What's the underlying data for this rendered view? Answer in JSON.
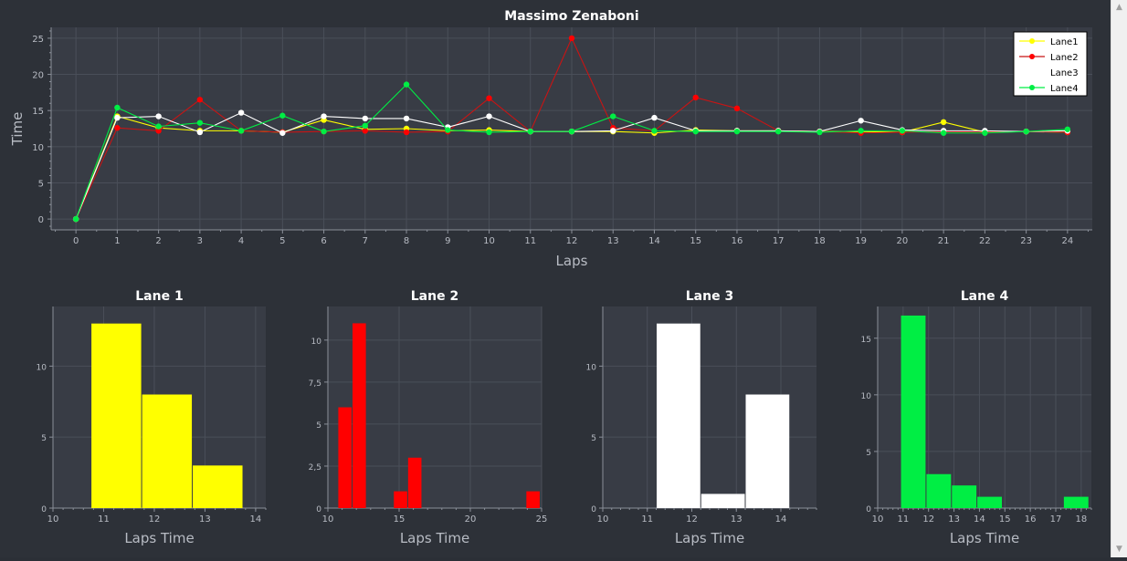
{
  "colors": {
    "background": "#2d3138",
    "plot_bg": "#383c45",
    "grid": "#4a4f59",
    "text": "#e6e6e6",
    "tick_text": "#b8bcc4",
    "lane1": "#ffff00",
    "lane2": "#ff0000",
    "lane3": "#ffffff",
    "lane4": "#00ee44",
    "lane2_line": "#c81414",
    "legend_bg": "#ffffff"
  },
  "chart_data": [
    {
      "type": "line",
      "title": "Massimo Zenaboni",
      "xlabel": "Laps",
      "ylabel": "Time",
      "xlim": [
        -0.6,
        24.6
      ],
      "ylim": [
        -1.5,
        26.5
      ],
      "x_ticks": [
        0,
        1,
        2,
        3,
        4,
        5,
        6,
        7,
        8,
        9,
        10,
        11,
        12,
        13,
        14,
        15,
        16,
        17,
        18,
        19,
        20,
        21,
        22,
        23,
        24
      ],
      "y_ticks": [
        0,
        5,
        10,
        15,
        20,
        25
      ],
      "grid": true,
      "legend_position": "top-right",
      "x": [
        0,
        1,
        2,
        3,
        4,
        5,
        6,
        7,
        8,
        9,
        10,
        11,
        12,
        13,
        14,
        15,
        16,
        17,
        18,
        19,
        20,
        21,
        22,
        23,
        24
      ],
      "series": [
        {
          "name": "Lane1",
          "color": "#ffff00",
          "line_color": "#ffff00",
          "values": [
            0,
            14.2,
            12.6,
            12.2,
            12.2,
            12.0,
            13.7,
            12.4,
            12.5,
            12.2,
            12.3,
            12.1,
            12.1,
            12.1,
            11.9,
            12.3,
            12.2,
            12.2,
            12.1,
            12.1,
            12.0,
            13.4,
            12.0,
            12.1,
            12.0
          ]
        },
        {
          "name": "Lane2",
          "color": "#ff0000",
          "line_color": "#c81414",
          "values": [
            0,
            12.6,
            12.2,
            16.5,
            12.2,
            12.0,
            12.1,
            12.2,
            12.0,
            12.1,
            16.7,
            12.1,
            25.0,
            12.6,
            12.2,
            16.8,
            15.3,
            12.2,
            12.1,
            11.9,
            12.0,
            12.1,
            12.0,
            12.1,
            12.0
          ]
        },
        {
          "name": "Lane3",
          "color": "#ffffff",
          "line_color": "#ffffff",
          "values": [
            0,
            14.0,
            14.2,
            12.0,
            14.7,
            11.9,
            14.2,
            13.9,
            13.9,
            12.7,
            14.2,
            12.1,
            12.1,
            12.2,
            14.0,
            12.2,
            12.2,
            12.2,
            12.1,
            13.6,
            12.3,
            12.2,
            12.2,
            12.1,
            12.2
          ]
        },
        {
          "name": "Lane4",
          "color": "#00ee44",
          "line_color": "#00ee44",
          "values": [
            0,
            15.4,
            12.8,
            13.3,
            12.2,
            14.3,
            12.1,
            12.9,
            18.6,
            12.3,
            12.0,
            12.1,
            12.1,
            14.2,
            12.2,
            12.1,
            12.1,
            12.1,
            12.0,
            12.2,
            12.2,
            11.9,
            11.9,
            12.1,
            12.4
          ]
        }
      ]
    },
    {
      "type": "bar",
      "title": "Lane 1",
      "xlabel": "Laps Time",
      "color": "#ffff00",
      "xlim": [
        10,
        14.2
      ],
      "ylim": [
        0,
        14.2
      ],
      "x_ticks": [
        {
          "v": 10,
          "label": "10"
        },
        {
          "v": 11,
          "label": "11"
        },
        {
          "v": 12,
          "label": "12"
        },
        {
          "v": 13,
          "label": "13"
        },
        {
          "v": 14,
          "label": "14"
        }
      ],
      "y_ticks": [
        {
          "v": 0,
          "label": "0"
        },
        {
          "v": 5,
          "label": "5"
        },
        {
          "v": 10,
          "label": "10"
        }
      ],
      "bins": [
        {
          "x0": 10.75,
          "x1": 11.75,
          "count": 13
        },
        {
          "x0": 11.75,
          "x1": 12.75,
          "count": 8
        },
        {
          "x0": 12.75,
          "x1": 13.75,
          "count": 3
        }
      ]
    },
    {
      "type": "bar",
      "title": "Lane 2",
      "xlabel": "Laps Time",
      "color": "#ff0000",
      "xlim": [
        10,
        25
      ],
      "ylim": [
        0,
        12
      ],
      "x_ticks": [
        {
          "v": 10,
          "label": "10"
        },
        {
          "v": 15,
          "label": "15"
        },
        {
          "v": 20,
          "label": "20"
        },
        {
          "v": 25,
          "label": "25"
        }
      ],
      "y_ticks": [
        {
          "v": 0,
          "label": "0"
        },
        {
          "v": 2.5,
          "label": "2,5"
        },
        {
          "v": 5,
          "label": "5"
        },
        {
          "v": 7.5,
          "label": "7,5"
        },
        {
          "v": 10,
          "label": "10"
        }
      ],
      "bins": [
        {
          "x0": 10.7,
          "x1": 11.7,
          "count": 6
        },
        {
          "x0": 11.7,
          "x1": 12.7,
          "count": 11
        },
        {
          "x0": 14.6,
          "x1": 15.6,
          "count": 1
        },
        {
          "x0": 15.6,
          "x1": 16.6,
          "count": 3
        },
        {
          "x0": 23.9,
          "x1": 24.9,
          "count": 1
        }
      ]
    },
    {
      "type": "bar",
      "title": "Lane 3",
      "xlabel": "Laps Time",
      "color": "#ffffff",
      "xlim": [
        10,
        14.8
      ],
      "ylim": [
        0,
        14.2
      ],
      "x_ticks": [
        {
          "v": 10,
          "label": "10"
        },
        {
          "v": 11,
          "label": "11"
        },
        {
          "v": 12,
          "label": "12"
        },
        {
          "v": 13,
          "label": "13"
        },
        {
          "v": 14,
          "label": "14"
        }
      ],
      "y_ticks": [
        {
          "v": 0,
          "label": "0"
        },
        {
          "v": 5,
          "label": "5"
        },
        {
          "v": 10,
          "label": "10"
        }
      ],
      "bins": [
        {
          "x0": 11.2,
          "x1": 12.2,
          "count": 13
        },
        {
          "x0": 12.2,
          "x1": 13.2,
          "count": 1
        },
        {
          "x0": 13.2,
          "x1": 14.2,
          "count": 8
        }
      ]
    },
    {
      "type": "bar",
      "title": "Lane 4",
      "xlabel": "Laps Time",
      "color": "#00ee44",
      "xlim": [
        10,
        18.4
      ],
      "ylim": [
        0,
        17.8
      ],
      "x_ticks": [
        {
          "v": 10,
          "label": "10"
        },
        {
          "v": 11,
          "label": "11"
        },
        {
          "v": 12,
          "label": "12"
        },
        {
          "v": 13,
          "label": "13"
        },
        {
          "v": 14,
          "label": "14"
        },
        {
          "v": 15,
          "label": "15"
        },
        {
          "v": 16,
          "label": "16"
        },
        {
          "v": 17,
          "label": "17"
        },
        {
          "v": 18,
          "label": "18"
        }
      ],
      "y_ticks": [
        {
          "v": 0,
          "label": "0"
        },
        {
          "v": 5,
          "label": "5"
        },
        {
          "v": 10,
          "label": "10"
        },
        {
          "v": 15,
          "label": "15"
        }
      ],
      "bins": [
        {
          "x0": 10.9,
          "x1": 11.9,
          "count": 17
        },
        {
          "x0": 11.9,
          "x1": 12.9,
          "count": 3
        },
        {
          "x0": 12.9,
          "x1": 13.9,
          "count": 2
        },
        {
          "x0": 13.9,
          "x1": 14.9,
          "count": 1
        },
        {
          "x0": 17.3,
          "x1": 18.3,
          "count": 1
        }
      ]
    }
  ]
}
